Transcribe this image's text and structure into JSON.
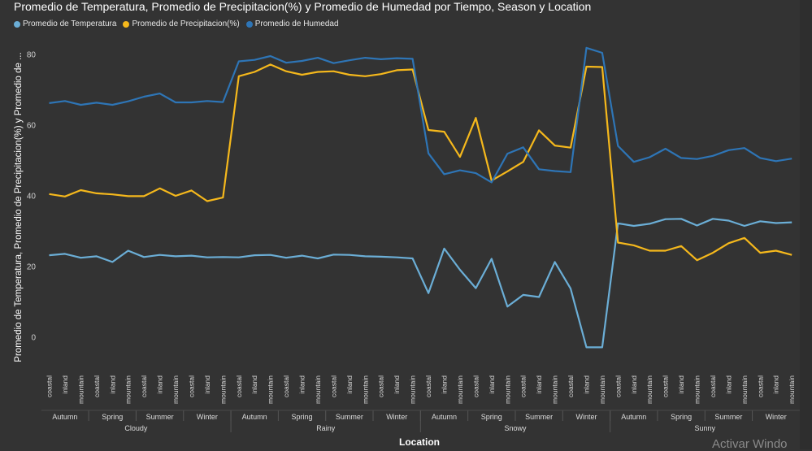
{
  "chart_data": {
    "type": "line",
    "title": "Promedio de Temperatura, Promedio de Precipitacion(%) y Promedio de Humedad por Tiempo, Season y Location",
    "xlabel": "Location",
    "ylabel": "Promedio de Temperatura, Promedio de Precipitacion(%) y Promedio de ...",
    "ylim": [
      -8,
      85
    ],
    "yticks": [
      0,
      20,
      40,
      60,
      80
    ],
    "legend_position": "top-left",
    "x": [
      "coastal",
      "inland",
      "mountain",
      "coastal",
      "inland",
      "mountain",
      "coastal",
      "inland",
      "mountain",
      "coastal",
      "inland",
      "mountain",
      "coastal",
      "inland",
      "mountain",
      "coastal",
      "inland",
      "mountain",
      "coastal",
      "inland",
      "mountain",
      "coastal",
      "inland",
      "mountain",
      "coastal",
      "inland",
      "mountain",
      "coastal",
      "inland",
      "mountain",
      "coastal",
      "inland",
      "mountain",
      "coastal",
      "inland",
      "mountain",
      "coastal",
      "inland",
      "mountain",
      "coastal",
      "inland",
      "mountain",
      "coastal",
      "inland",
      "mountain",
      "coastal",
      "inland",
      "mountain"
    ],
    "season_groups": [
      {
        "label": "Autumn",
        "start": 0,
        "end": 2
      },
      {
        "label": "Spring",
        "start": 3,
        "end": 5
      },
      {
        "label": "Summer",
        "start": 6,
        "end": 8
      },
      {
        "label": "Winter",
        "start": 9,
        "end": 11
      },
      {
        "label": "Autumn",
        "start": 12,
        "end": 14
      },
      {
        "label": "Spring",
        "start": 15,
        "end": 17
      },
      {
        "label": "Summer",
        "start": 18,
        "end": 20
      },
      {
        "label": "Winter",
        "start": 21,
        "end": 23
      },
      {
        "label": "Autumn",
        "start": 24,
        "end": 26
      },
      {
        "label": "Spring",
        "start": 27,
        "end": 29
      },
      {
        "label": "Summer",
        "start": 30,
        "end": 32
      },
      {
        "label": "Winter",
        "start": 33,
        "end": 35
      },
      {
        "label": "Autumn",
        "start": 36,
        "end": 38
      },
      {
        "label": "Spring",
        "start": 39,
        "end": 41
      },
      {
        "label": "Summer",
        "start": 42,
        "end": 44
      },
      {
        "label": "Winter",
        "start": 45,
        "end": 47
      }
    ],
    "weather_groups": [
      {
        "label": "Cloudy",
        "start": 0,
        "end": 11
      },
      {
        "label": "Rainy",
        "start": 12,
        "end": 23
      },
      {
        "label": "Snowy",
        "start": 24,
        "end": 35
      },
      {
        "label": "Sunny",
        "start": 36,
        "end": 47
      }
    ],
    "series": [
      {
        "name": "Promedio de Temperatura",
        "color": "#6baed6",
        "values": [
          23.2,
          23.6,
          22.5,
          22.9,
          21.3,
          24.5,
          22.7,
          23.3,
          22.9,
          23.1,
          22.6,
          22.7,
          22.6,
          23.2,
          23.3,
          22.5,
          23.1,
          22.3,
          23.4,
          23.3,
          22.9,
          22.8,
          22.6,
          22.3,
          12.5,
          25.1,
          19.1,
          13.9,
          22.2,
          8.7,
          12.0,
          11.4,
          21.3,
          13.8,
          -2.8,
          -2.8,
          32.2,
          31.5,
          32.1,
          33.4,
          33.5,
          31.6,
          33.5,
          33.0,
          31.5,
          32.8,
          32.3,
          32.5
        ]
      },
      {
        "name": "Promedio de Precipitacion(%)",
        "color": "#f5b81c",
        "values": [
          40.5,
          39.8,
          41.6,
          40.7,
          40.4,
          39.9,
          39.9,
          42.1,
          40.0,
          41.5,
          38.5,
          39.5,
          73.8,
          75.0,
          77.1,
          75.2,
          74.2,
          75.0,
          75.2,
          74.2,
          73.8,
          74.4,
          75.5,
          75.7,
          58.6,
          58.1,
          51.0,
          62.0,
          44.3,
          46.9,
          49.6,
          58.5,
          54.2,
          53.6,
          76.5,
          76.4,
          26.8,
          26.0,
          24.5,
          24.5,
          25.8,
          21.8,
          23.9,
          26.6,
          28.1,
          23.9,
          24.5,
          23.3
        ]
      },
      {
        "name": "Promedio de Humedad",
        "color": "#2e75b6",
        "values": [
          66.2,
          66.8,
          65.7,
          66.3,
          65.7,
          66.7,
          68.0,
          68.9,
          66.4,
          66.4,
          66.8,
          66.5,
          78.0,
          78.4,
          79.5,
          77.6,
          78.1,
          79.0,
          77.5,
          78.3,
          79.0,
          78.6,
          78.9,
          78.7,
          52.0,
          46.1,
          47.2,
          46.4,
          43.8,
          51.9,
          53.7,
          47.5,
          47.0,
          46.7,
          81.8,
          80.4,
          54.1,
          49.6,
          50.9,
          53.3,
          50.7,
          50.4,
          51.3,
          52.9,
          53.5,
          50.7,
          49.8,
          50.5
        ]
      }
    ]
  },
  "watermark": "Activar Windo"
}
